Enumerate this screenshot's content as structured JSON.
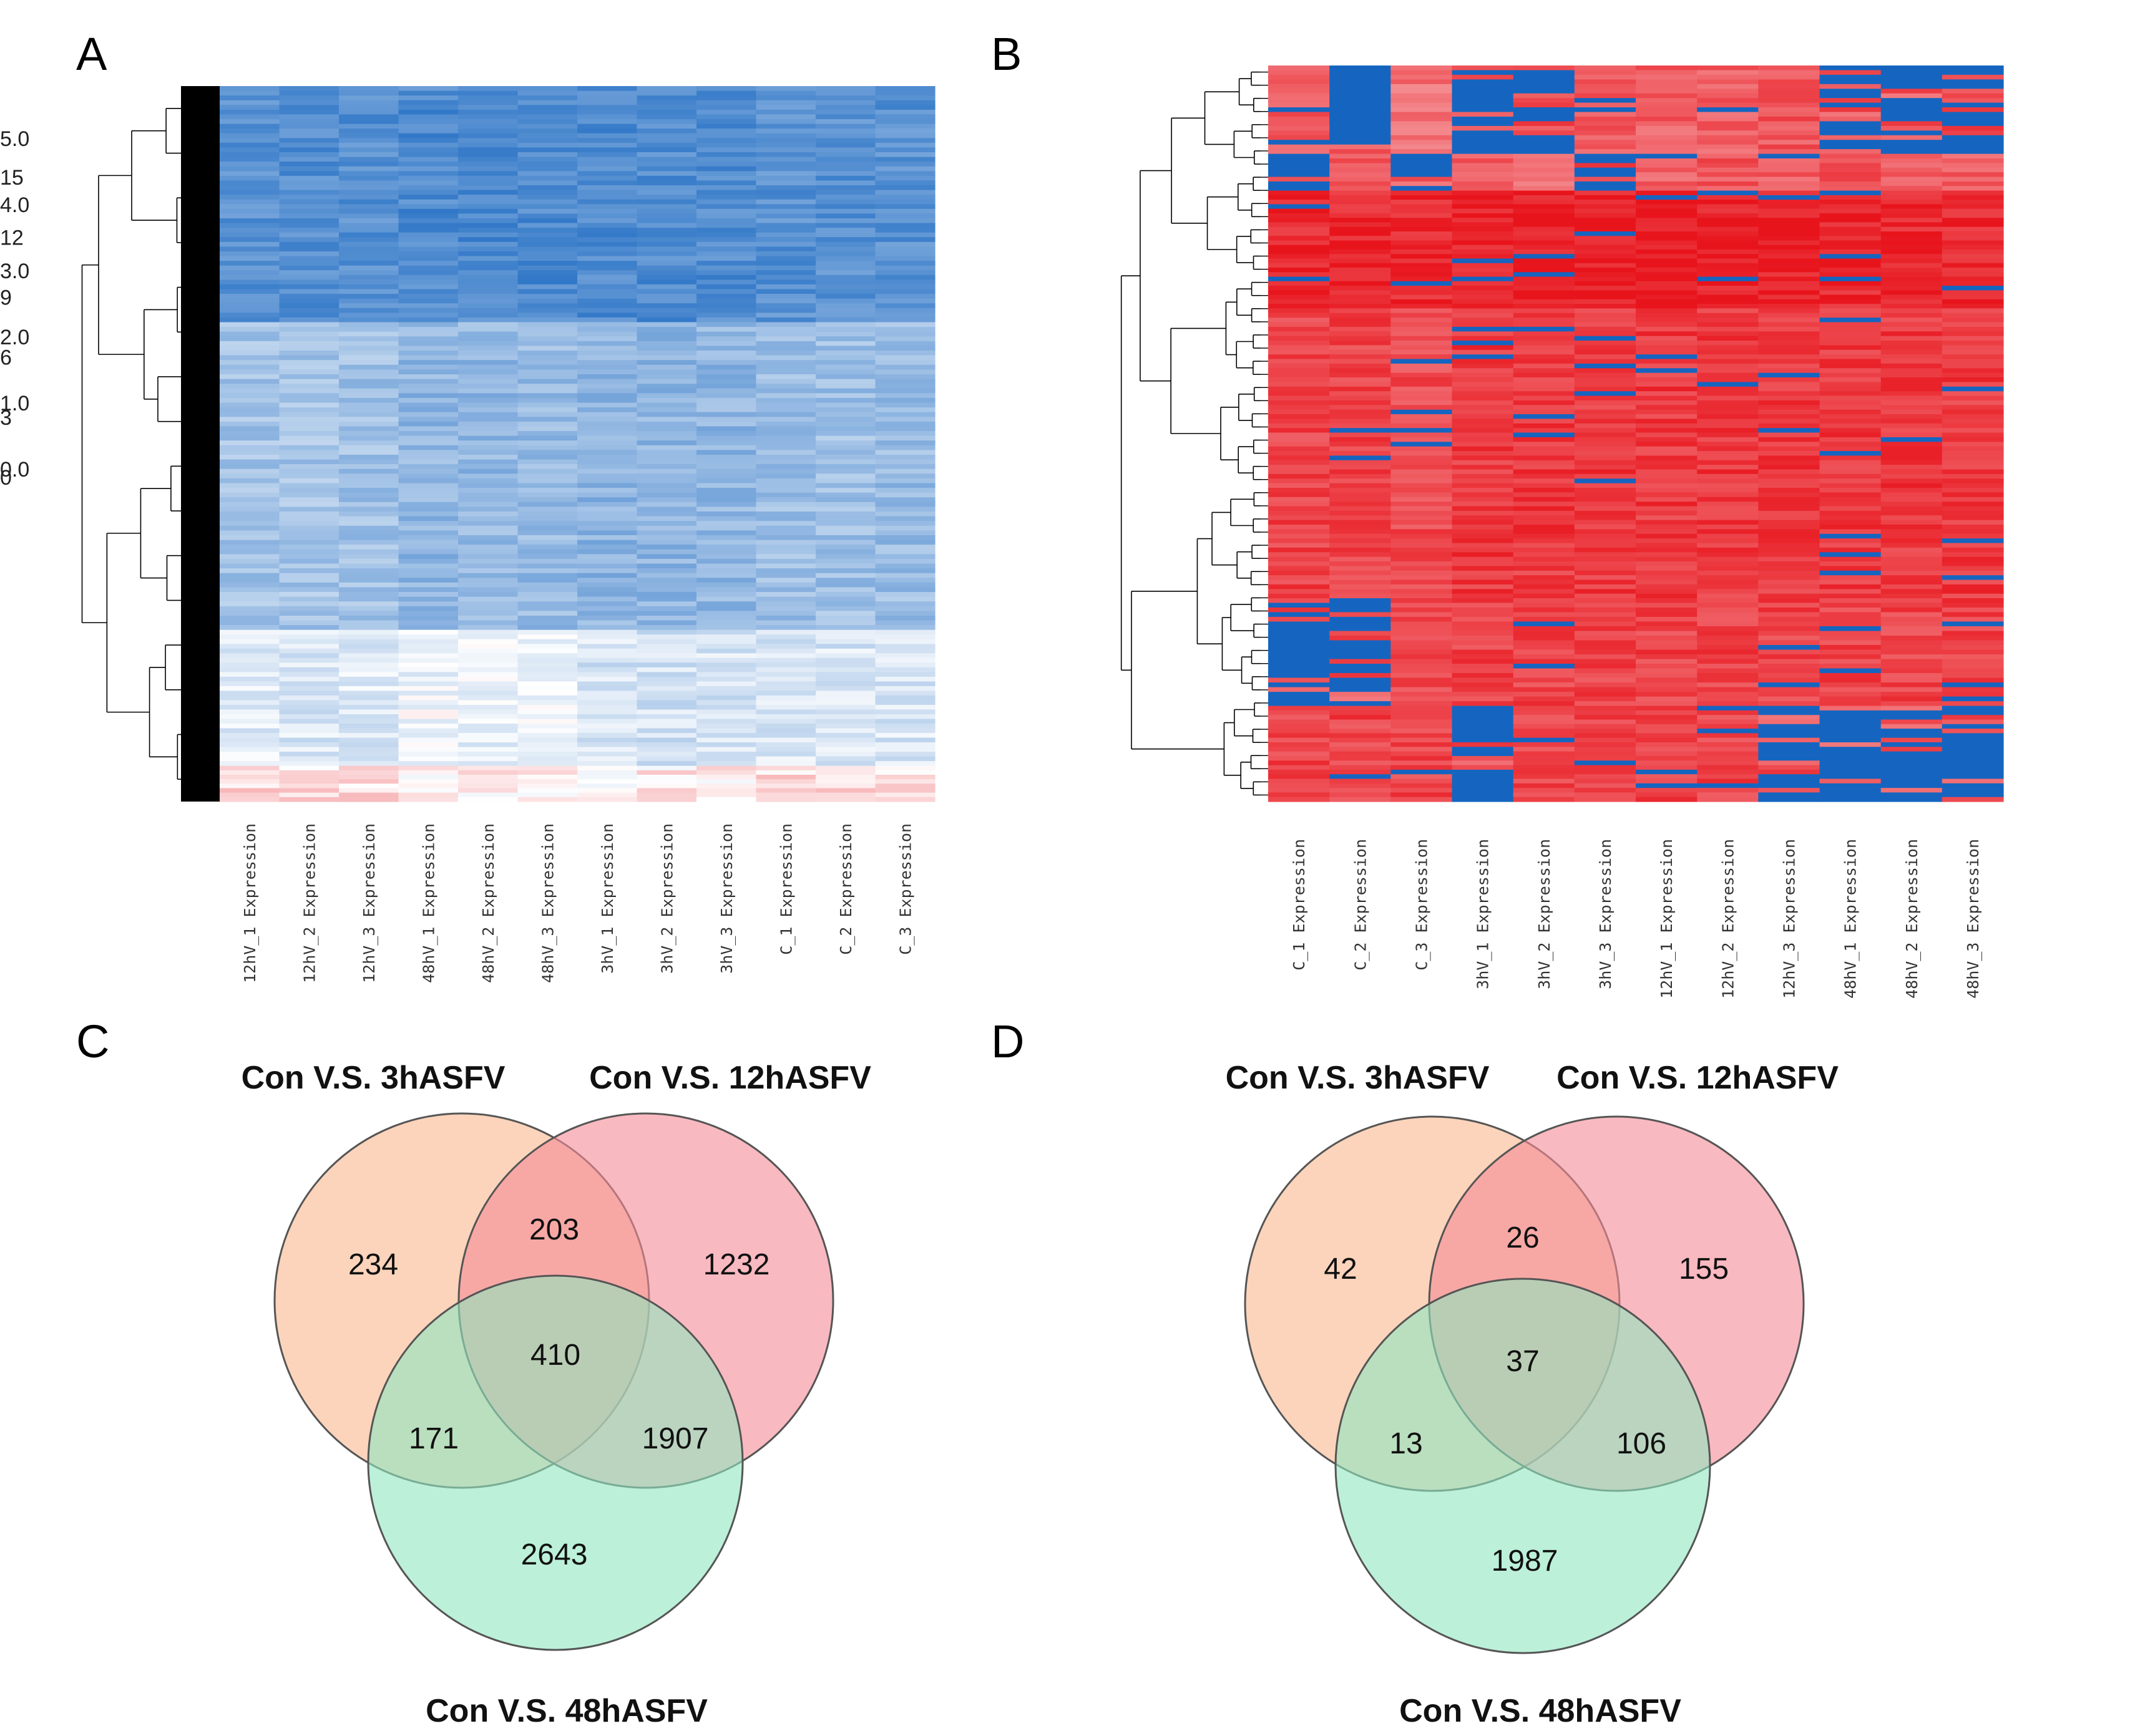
{
  "figure": {
    "panels": {
      "A": "A",
      "B": "B",
      "C": "C",
      "D": "D"
    }
  },
  "chart_data": [
    {
      "panel": "A",
      "type": "heatmap",
      "title": "",
      "columns": [
        "12hV_1 Expression",
        "12hV_2 Expression",
        "12hV_3 Expression",
        "48hV_1 Expression",
        "48hV_2 Expression",
        "48hV_3 Expression",
        "3hV_1 Expression",
        "3hV_2 Expression",
        "3hV_3 Expression",
        "C_1 Expression",
        "C_2 Expression",
        "C_3 Expression"
      ],
      "colorbar": {
        "min": 0,
        "max": 16,
        "ticks": [
          "15",
          "12",
          "9",
          "6",
          "3",
          "0"
        ],
        "tick_values": [
          15,
          12,
          9,
          6,
          3,
          0
        ],
        "low_color": "#1565c0",
        "mid_color": "#ffffff",
        "high_color": "#e8141c",
        "mid_value": 9
      },
      "row_blocks": [
        {
          "rows": 0.33,
          "values": [
            2.5,
            2.5,
            2.5,
            2.2,
            2.2,
            2.2,
            2.3,
            2.3,
            2.3,
            2.6,
            2.6,
            2.6
          ]
        },
        {
          "rows": 0.43,
          "values": [
            5.5,
            5.6,
            5.4,
            4.8,
            4.9,
            5.0,
            4.6,
            4.7,
            4.7,
            5.2,
            5.3,
            5.1
          ]
        },
        {
          "rows": 0.19,
          "values": [
            7.8,
            7.6,
            7.7,
            8.4,
            8.2,
            8.2,
            7.4,
            7.3,
            7.4,
            7.6,
            7.5,
            7.6
          ]
        },
        {
          "rows": 0.05,
          "values": [
            10.2,
            10.0,
            10.1,
            9.2,
            9.6,
            9.5,
            9.4,
            9.6,
            9.5,
            10.2,
            10.0,
            10.1
          ]
        }
      ],
      "dendrogram": "rows clustered (hierarchical)"
    },
    {
      "panel": "B",
      "type": "heatmap",
      "title": "",
      "columns": [
        "C_1 Expression",
        "C_2 Expression",
        "C_3 Expression",
        "3hV_1 Expression",
        "3hV_2 Expression",
        "3hV_3 Expression",
        "12hV_1 Expression",
        "12hV_2 Expression",
        "12hV_3 Expression",
        "48hV_1 Expression",
        "48hV_2 Expression",
        "48hV_3 Expression"
      ],
      "colorbar": {
        "min": 0,
        "max": 5,
        "ticks": [
          "5.0",
          "4.0",
          "3.0",
          "2.0",
          "1.0",
          "0.0"
        ],
        "tick_values": [
          5,
          4,
          3,
          2,
          1,
          0
        ],
        "low_color": "#1565c0",
        "mid_color": "#ffffff",
        "high_color": "#e8141c",
        "mid_value": 2.5
      },
      "row_blocks": [
        {
          "rows": 0.12,
          "values": [
            4.3,
            0,
            4.0,
            0,
            0,
            4.2,
            4.2,
            4.2,
            4.3,
            0,
            0,
            0
          ]
        },
        {
          "rows": 0.05,
          "values": [
            0,
            4.3,
            0,
            4.3,
            4.1,
            0,
            4.2,
            4.3,
            4.2,
            4.3,
            4.2,
            4.2
          ]
        },
        {
          "rows": 0.16,
          "values": [
            4.8,
            4.8,
            4.8,
            4.9,
            4.9,
            4.9,
            4.9,
            4.9,
            4.9,
            4.8,
            4.8,
            4.8
          ]
        },
        {
          "rows": 0.4,
          "values": [
            4.5,
            4.5,
            4.4,
            4.6,
            4.6,
            4.6,
            4.6,
            4.6,
            4.6,
            4.6,
            4.6,
            4.6
          ]
        },
        {
          "rows": 0.14,
          "values": [
            0,
            0,
            4.4,
            4.5,
            4.5,
            4.5,
            4.5,
            4.5,
            4.5,
            4.5,
            4.5,
            4.5
          ]
        },
        {
          "rows": 0.13,
          "values": [
            4.5,
            4.5,
            4.5,
            0,
            4.5,
            4.5,
            4.5,
            4.5,
            0,
            0,
            0,
            0
          ]
        }
      ],
      "dendrogram": "rows clustered (hierarchical)"
    },
    {
      "panel": "C",
      "type": "venn",
      "sets": [
        "Con V.S. 3hASFV",
        "Con V.S. 12hASFV",
        "Con V.S. 48hASFV"
      ],
      "colors": [
        "#f9b88e",
        "#f58a96",
        "#8fe6bf"
      ],
      "regions": {
        "only_3h": 234,
        "only_12h": 1232,
        "only_48h": 2643,
        "3h_12h": 203,
        "3h_48h": 171,
        "12h_48h": 1907,
        "all": 410
      },
      "region_labels": {
        "only_3h": "234",
        "only_12h": "1232",
        "only_48h": "2643",
        "3h_12h": "203",
        "3h_48h": "171",
        "12h_48h": "1907",
        "all": "410"
      }
    },
    {
      "panel": "D",
      "type": "venn",
      "sets": [
        "Con V.S. 3hASFV",
        "Con V.S. 12hASFV",
        "Con V.S. 48hASFV"
      ],
      "colors": [
        "#f9b88e",
        "#f58a96",
        "#8fe6bf"
      ],
      "regions": {
        "only_3h": 42,
        "only_12h": 155,
        "only_48h": 1987,
        "3h_12h": 26,
        "3h_48h": 13,
        "12h_48h": 106,
        "all": 37
      },
      "region_labels": {
        "only_3h": "42",
        "only_12h": "155",
        "only_48h": "1987",
        "3h_12h": "26",
        "3h_48h": "13",
        "12h_48h": "106",
        "all": "37"
      }
    }
  ]
}
